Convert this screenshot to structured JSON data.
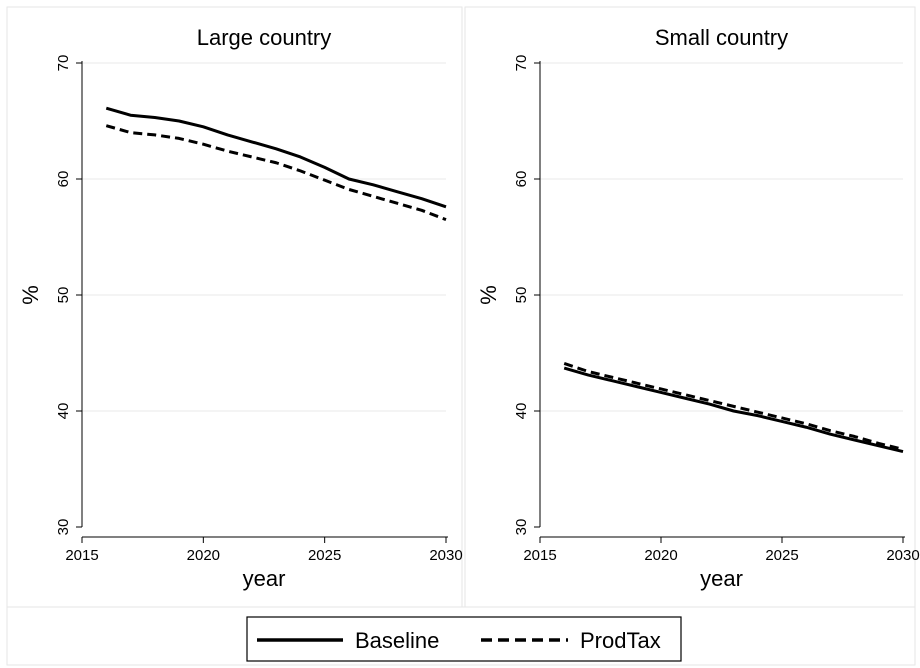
{
  "chart_data": [
    {
      "type": "line",
      "title": "Large country",
      "xlabel": "year",
      "ylabel": "%",
      "xlim": [
        2015,
        2030
      ],
      "ylim": [
        30,
        70
      ],
      "xticks": [
        2015,
        2020,
        2025,
        2030
      ],
      "yticks": [
        30,
        40,
        50,
        60,
        70
      ],
      "grid": true,
      "x": [
        2016,
        2017,
        2018,
        2019,
        2020,
        2021,
        2022,
        2023,
        2024,
        2025,
        2026,
        2027,
        2028,
        2029,
        2030
      ],
      "series": [
        {
          "name": "Baseline",
          "style": "solid",
          "values": [
            66.1,
            65.5,
            65.3,
            65.0,
            64.5,
            63.8,
            63.2,
            62.6,
            61.9,
            61.0,
            60.0,
            59.5,
            58.9,
            58.3,
            57.6
          ]
        },
        {
          "name": "ProdTax",
          "style": "dashed",
          "values": [
            64.6,
            64.0,
            63.8,
            63.5,
            63.0,
            62.4,
            61.9,
            61.4,
            60.7,
            59.9,
            59.1,
            58.5,
            57.9,
            57.3,
            56.5
          ]
        }
      ]
    },
    {
      "type": "line",
      "title": "Small country",
      "xlabel": "year",
      "ylabel": "%",
      "xlim": [
        2015,
        2030
      ],
      "ylim": [
        30,
        70
      ],
      "xticks": [
        2015,
        2020,
        2025,
        2030
      ],
      "yticks": [
        30,
        40,
        50,
        60,
        70
      ],
      "grid": true,
      "x": [
        2016,
        2017,
        2018,
        2019,
        2020,
        2021,
        2022,
        2023,
        2024,
        2025,
        2026,
        2027,
        2028,
        2029,
        2030
      ],
      "series": [
        {
          "name": "Baseline",
          "style": "solid",
          "values": [
            43.7,
            43.1,
            42.6,
            42.1,
            41.6,
            41.1,
            40.6,
            40.0,
            39.6,
            39.1,
            38.6,
            38.0,
            37.5,
            37.0,
            36.5
          ]
        },
        {
          "name": "ProdTax",
          "style": "dashed",
          "values": [
            44.1,
            43.4,
            42.9,
            42.4,
            41.9,
            41.4,
            40.9,
            40.4,
            39.9,
            39.4,
            38.9,
            38.3,
            37.8,
            37.2,
            36.7
          ]
        }
      ]
    }
  ],
  "legend": {
    "items": [
      {
        "label": "Baseline",
        "style": "solid"
      },
      {
        "label": "ProdTax",
        "style": "dashed"
      }
    ]
  },
  "colors": {
    "line": "#000000",
    "grid": "#e8e8e8",
    "panel_border": "#e6e6e6",
    "axis": "#000000",
    "tick_text": "#000000",
    "background": "#ffffff"
  }
}
